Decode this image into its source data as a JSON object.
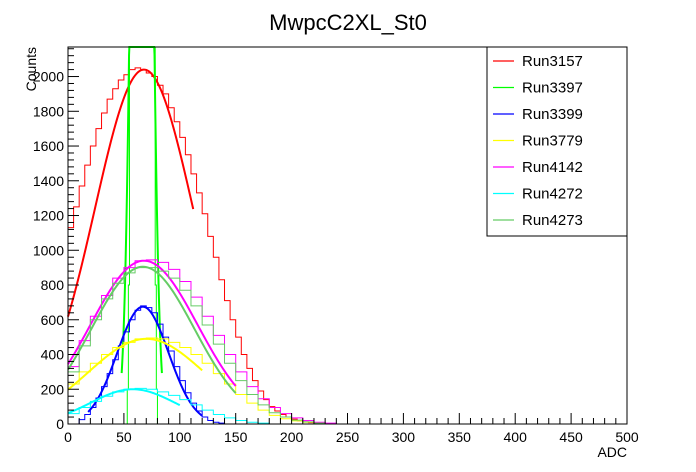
{
  "chart_data": {
    "type": "line",
    "title": "MwpcC2XL_St0",
    "xlabel": "ADC",
    "ylabel": "Counts",
    "xlim": [
      0,
      500
    ],
    "ylim": [
      0,
      2170
    ],
    "xticks": [
      0,
      50,
      100,
      150,
      200,
      250,
      300,
      350,
      400,
      450,
      500
    ],
    "yticks": [
      0,
      200,
      400,
      600,
      800,
      1000,
      1200,
      1400,
      1600,
      1800,
      2000
    ],
    "legend_position": "top-right",
    "series": [
      {
        "name": "Run3157",
        "color": "#ff0000",
        "amplitude": 2040,
        "mean": 68,
        "sigma": 44,
        "x": [
          0,
          5,
          10,
          15,
          20,
          25,
          30,
          35,
          40,
          45,
          50,
          55,
          60,
          65,
          70,
          75,
          80,
          85,
          90,
          95,
          100,
          105,
          110,
          115,
          120,
          125,
          130,
          135,
          140,
          145,
          150,
          155,
          160,
          165,
          170,
          175,
          180,
          185,
          190,
          195,
          200,
          205,
          210,
          215,
          220,
          225,
          230,
          235,
          240,
          245
        ],
        "y": [
          1130,
          1250,
          1370,
          1490,
          1600,
          1700,
          1790,
          1870,
          1930,
          1980,
          2010,
          2040,
          2050,
          2040,
          2020,
          2000,
          1950,
          1900,
          1820,
          1740,
          1650,
          1550,
          1440,
          1330,
          1210,
          1080,
          960,
          830,
          710,
          600,
          500,
          400,
          320,
          250,
          190,
          140,
          100,
          75,
          55,
          40,
          28,
          18,
          12,
          8,
          5,
          3,
          2,
          1,
          0,
          0
        ],
        "fit_range": [
          0,
          112
        ]
      },
      {
        "name": "Run3397",
        "color": "#00ff00",
        "amplitude": 8000,
        "mean": 66,
        "sigma": 7,
        "x": [
          52,
          53,
          54,
          55,
          56,
          57,
          58,
          75,
          76,
          77,
          78,
          79,
          80
        ],
        "y": [
          0,
          200,
          800,
          2200,
          2200,
          2200,
          2200,
          2200,
          2200,
          2200,
          800,
          200,
          0
        ],
        "fit_range": [
          48,
          84
        ]
      },
      {
        "name": "Run3399",
        "color": "#0000ff",
        "amplitude": 675,
        "mean": 67,
        "sigma": 23,
        "x": [
          10,
          15,
          20,
          25,
          30,
          35,
          40,
          45,
          50,
          55,
          60,
          65,
          70,
          75,
          80,
          85,
          90,
          95,
          100,
          105,
          110,
          115,
          120,
          125,
          130,
          135,
          140
        ],
        "y": [
          25,
          55,
          95,
          150,
          215,
          290,
          370,
          450,
          530,
          600,
          655,
          680,
          670,
          640,
          575,
          500,
          420,
          330,
          250,
          180,
          120,
          75,
          40,
          20,
          10,
          5,
          0
        ],
        "fit_range": [
          18,
          120
        ]
      },
      {
        "name": "Run3779",
        "color": "#ffff00",
        "amplitude": 490,
        "mean": 70,
        "sigma": 52,
        "x": [
          0,
          10,
          20,
          30,
          40,
          50,
          60,
          70,
          80,
          90,
          100,
          110,
          120,
          130,
          140,
          150,
          160,
          170,
          180,
          190,
          200,
          210,
          220,
          230
        ],
        "y": [
          230,
          300,
          350,
          400,
          440,
          470,
          490,
          495,
          490,
          470,
          440,
          400,
          350,
          290,
          230,
          170,
          120,
          80,
          50,
          30,
          18,
          10,
          5,
          0
        ],
        "fit_range": [
          0,
          120
        ]
      },
      {
        "name": "Run4142",
        "color": "#ff00ff",
        "amplitude": 940,
        "mean": 68,
        "sigma": 48,
        "x": [
          0,
          10,
          20,
          30,
          40,
          50,
          60,
          70,
          80,
          90,
          100,
          110,
          120,
          130,
          140,
          150,
          160,
          170,
          180,
          190,
          200,
          210,
          220,
          230,
          240
        ],
        "y": [
          330,
          480,
          620,
          740,
          840,
          900,
          940,
          945,
          930,
          890,
          820,
          730,
          620,
          510,
          400,
          300,
          215,
          145,
          95,
          60,
          35,
          20,
          10,
          5,
          0
        ],
        "fit_range": [
          0,
          150
        ]
      },
      {
        "name": "Run4272",
        "color": "#00ffff",
        "amplitude": 200,
        "mean": 58,
        "sigma": 38,
        "x": [
          0,
          10,
          20,
          30,
          40,
          50,
          60,
          70,
          80,
          90,
          100,
          110,
          120,
          130,
          140,
          150,
          160,
          170,
          180
        ],
        "y": [
          60,
          95,
          130,
          160,
          185,
          200,
          205,
          200,
          185,
          165,
          140,
          110,
          80,
          55,
          35,
          20,
          10,
          5,
          0
        ],
        "fit_range": [
          0,
          100
        ]
      },
      {
        "name": "Run4273",
        "color": "#66cc66",
        "amplitude": 905,
        "mean": 67,
        "sigma": 46,
        "x": [
          0,
          10,
          20,
          30,
          40,
          50,
          60,
          70,
          80,
          90,
          100,
          110,
          120,
          130,
          140,
          150,
          160,
          170,
          180,
          190,
          200,
          210,
          220,
          230
        ],
        "y": [
          300,
          450,
          600,
          720,
          810,
          870,
          900,
          900,
          880,
          840,
          770,
          680,
          570,
          460,
          350,
          250,
          170,
          110,
          65,
          40,
          22,
          12,
          5,
          0
        ],
        "fit_range": [
          0,
          150
        ]
      }
    ]
  }
}
